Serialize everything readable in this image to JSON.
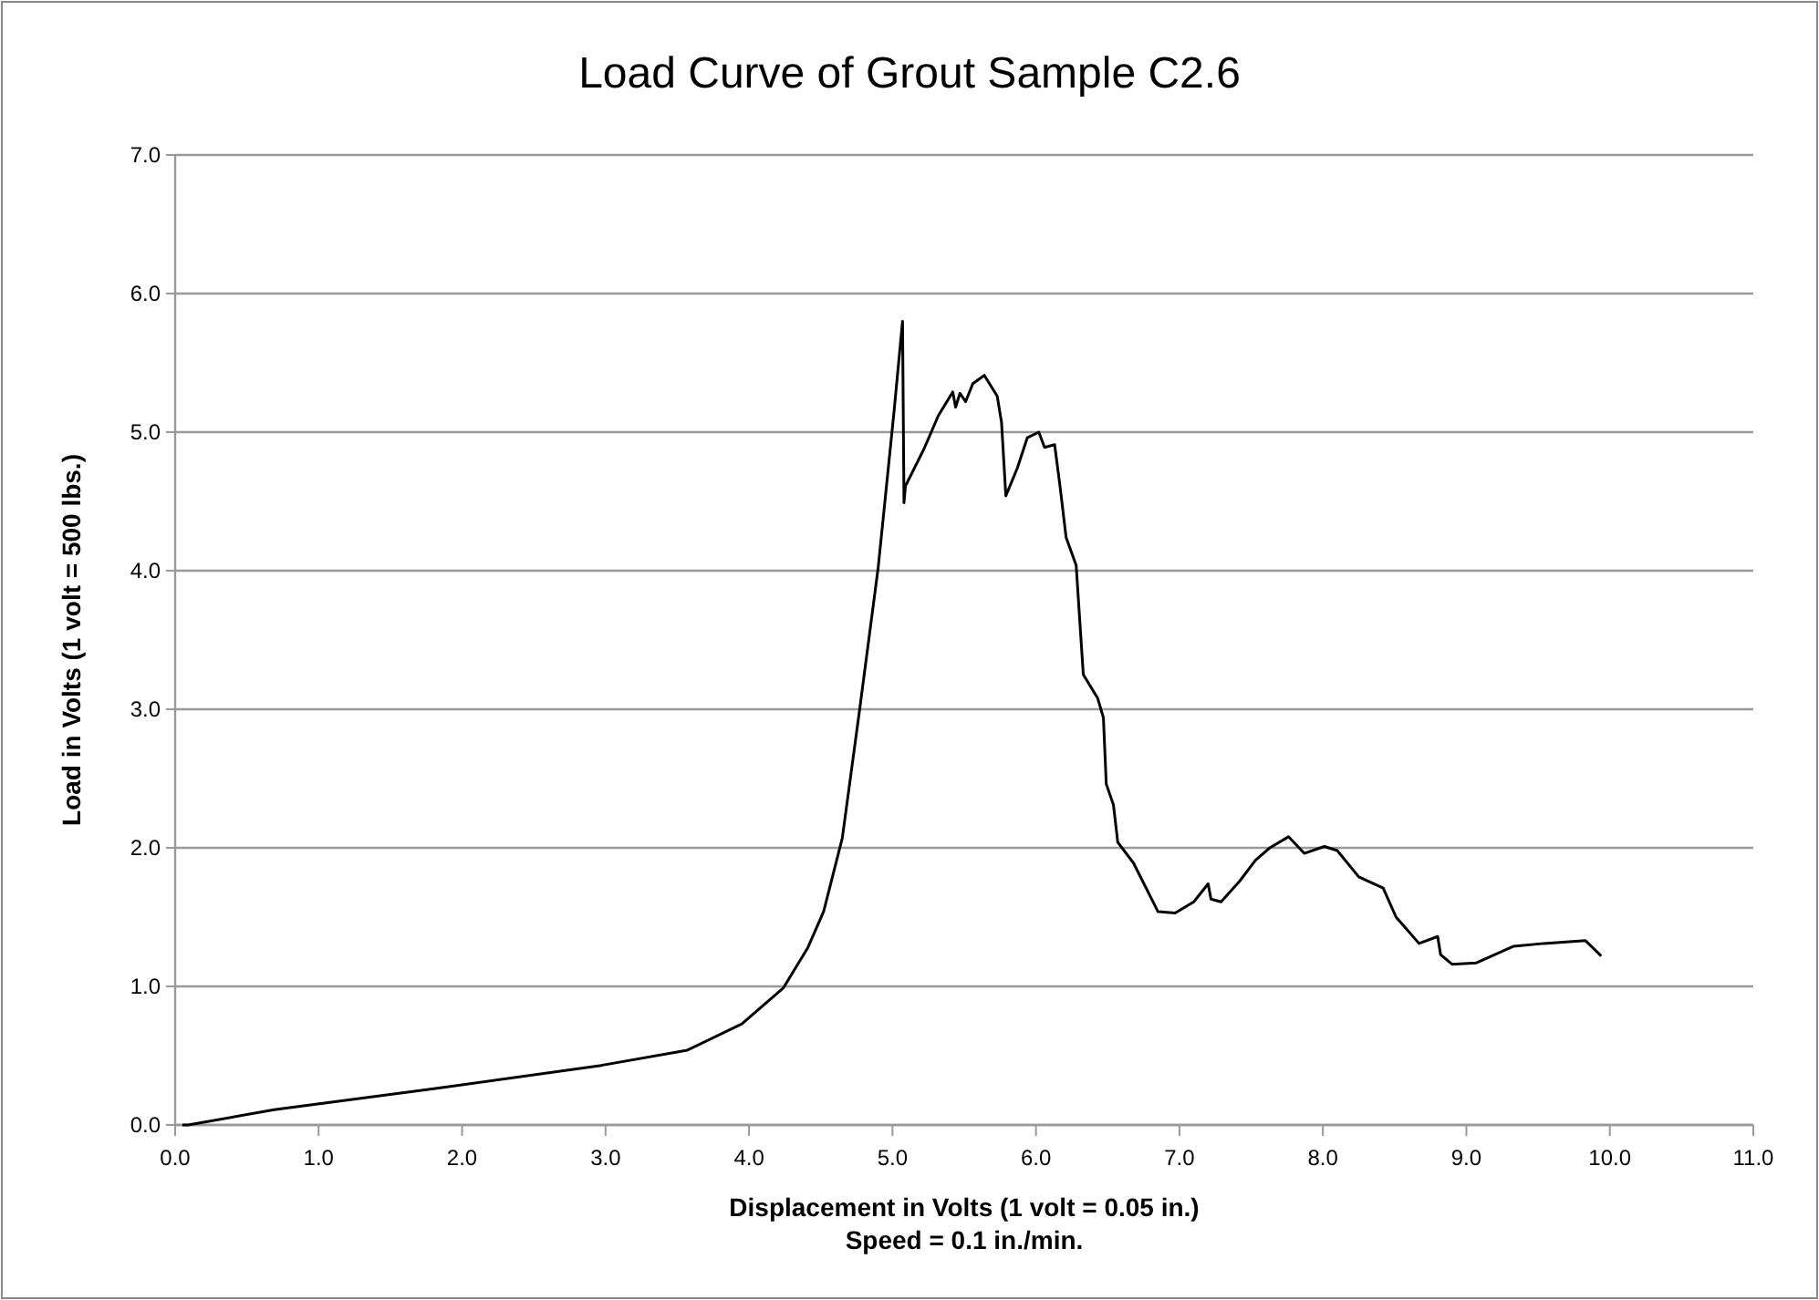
{
  "chart_data": {
    "type": "line",
    "title": "Load Curve of Grout Sample C2.6",
    "xlabel": "Displacement in Volts (1 volt = 0.05 in.)",
    "ylabel": "Load in Volts (1 volt = 500 lbs.)",
    "annotations": [
      "Speed = 0.1 in./min."
    ],
    "xlim": [
      0,
      11
    ],
    "ylim": [
      0,
      7
    ],
    "xticks": [
      {
        "value": 0,
        "label": "0.0"
      },
      {
        "value": 1,
        "label": "1.0"
      },
      {
        "value": 2,
        "label": "2.0"
      },
      {
        "value": 3,
        "label": "3.0"
      },
      {
        "value": 4,
        "label": "4.0"
      },
      {
        "value": 5,
        "label": "5.0"
      },
      {
        "value": 6,
        "label": "6.0"
      },
      {
        "value": 7,
        "label": "7.0"
      },
      {
        "value": 8,
        "label": "8.0"
      },
      {
        "value": 9,
        "label": "9.0"
      },
      {
        "value": 10,
        "label": "10.0"
      },
      {
        "value": 11,
        "label": "11.0"
      }
    ],
    "yticks": [
      {
        "value": 0,
        "label": "0.0"
      },
      {
        "value": 1,
        "label": "1.0"
      },
      {
        "value": 2,
        "label": "2.0"
      },
      {
        "value": 3,
        "label": "3.0"
      },
      {
        "value": 4,
        "label": "4.0"
      },
      {
        "value": 5,
        "label": "5.0"
      },
      {
        "value": 6,
        "label": "6.0"
      },
      {
        "value": 7,
        "label": "7.0"
      }
    ],
    "grid": "y",
    "line_style": "solid",
    "series": [
      {
        "color": "#000000",
        "x": [
          0.05,
          0.09,
          0.69,
          1.79,
          2.97,
          3.57,
          3.95,
          4.24,
          4.41,
          4.52,
          4.65,
          4.77,
          4.9,
          5.01,
          5.07,
          5.08,
          5.09,
          5.22,
          5.32,
          5.42,
          5.44,
          5.47,
          5.51,
          5.56,
          5.64,
          5.73,
          5.76,
          5.79,
          5.87,
          5.94,
          6.02,
          6.06,
          6.13,
          6.17,
          6.21,
          6.28,
          6.33,
          6.43,
          6.47,
          6.49,
          6.54,
          6.57,
          6.68,
          6.85,
          6.97,
          7.1,
          7.2,
          7.22,
          7.29,
          7.42,
          7.53,
          7.63,
          7.76,
          7.87,
          8.01,
          8.1,
          8.25,
          8.42,
          8.51,
          8.67,
          8.8,
          8.82,
          8.9,
          9.07,
          9.33,
          9.54,
          9.83,
          9.94
        ],
        "values": [
          0,
          0,
          0.11,
          0.26,
          0.43,
          0.54,
          0.73,
          0.99,
          1.28,
          1.54,
          2.07,
          2.99,
          4.02,
          5.14,
          5.8,
          4.49,
          4.61,
          4.88,
          5.12,
          5.29,
          5.18,
          5.28,
          5.22,
          5.35,
          5.41,
          5.26,
          5.07,
          4.54,
          4.74,
          4.96,
          5.0,
          4.89,
          4.91,
          4.59,
          4.24,
          4.04,
          3.25,
          3.08,
          2.94,
          2.46,
          2.31,
          2.04,
          1.89,
          1.54,
          1.53,
          1.61,
          1.74,
          1.63,
          1.61,
          1.76,
          1.91,
          2.0,
          2.08,
          1.96,
          2.01,
          1.98,
          1.79,
          1.71,
          1.5,
          1.31,
          1.36,
          1.23,
          1.16,
          1.17,
          1.29,
          1.31,
          1.33,
          1.22
        ]
      }
    ]
  }
}
